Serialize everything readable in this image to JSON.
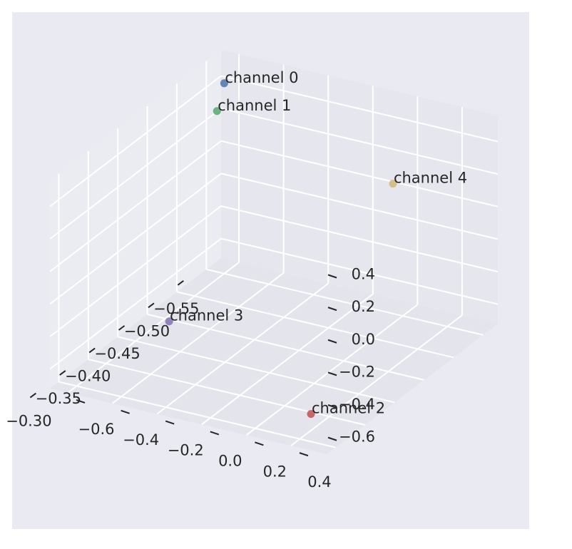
{
  "chart_data": {
    "type": "scatter",
    "projection": "3d",
    "title": "",
    "xlabel": "",
    "ylabel": "",
    "zlabel": "",
    "grid": true,
    "style": "seaborn-darkgrid",
    "background_color": "#eaeaf2",
    "x_ticks": [
      "−0.55",
      "−0.50",
      "−0.45",
      "−0.40",
      "−0.35",
      "−0.30"
    ],
    "y_ticks": [
      "−0.6",
      "−0.4",
      "−0.2",
      "0.0",
      "0.2",
      "0.4"
    ],
    "z_ticks": [
      "−0.6",
      "−0.4",
      "−0.2",
      "0.0",
      "0.2",
      "0.4"
    ],
    "points": [
      {
        "label": "channel 0",
        "x": -0.55,
        "y": -0.6,
        "z": 0.45,
        "color": "#4c72b0"
      },
      {
        "label": "channel 1",
        "x": -0.5,
        "y": -0.5,
        "z": 0.45,
        "color": "#55a868"
      },
      {
        "label": "channel 2",
        "x": -0.3,
        "y": 0.45,
        "z": -0.55,
        "color": "#c44e52"
      },
      {
        "label": "channel 3",
        "x": -0.4,
        "y": -0.45,
        "z": -0.55,
        "color": "#8172b2"
      },
      {
        "label": "channel 4",
        "x": -0.42,
        "y": 0.5,
        "z": 0.55,
        "color": "#ccb974"
      }
    ]
  }
}
